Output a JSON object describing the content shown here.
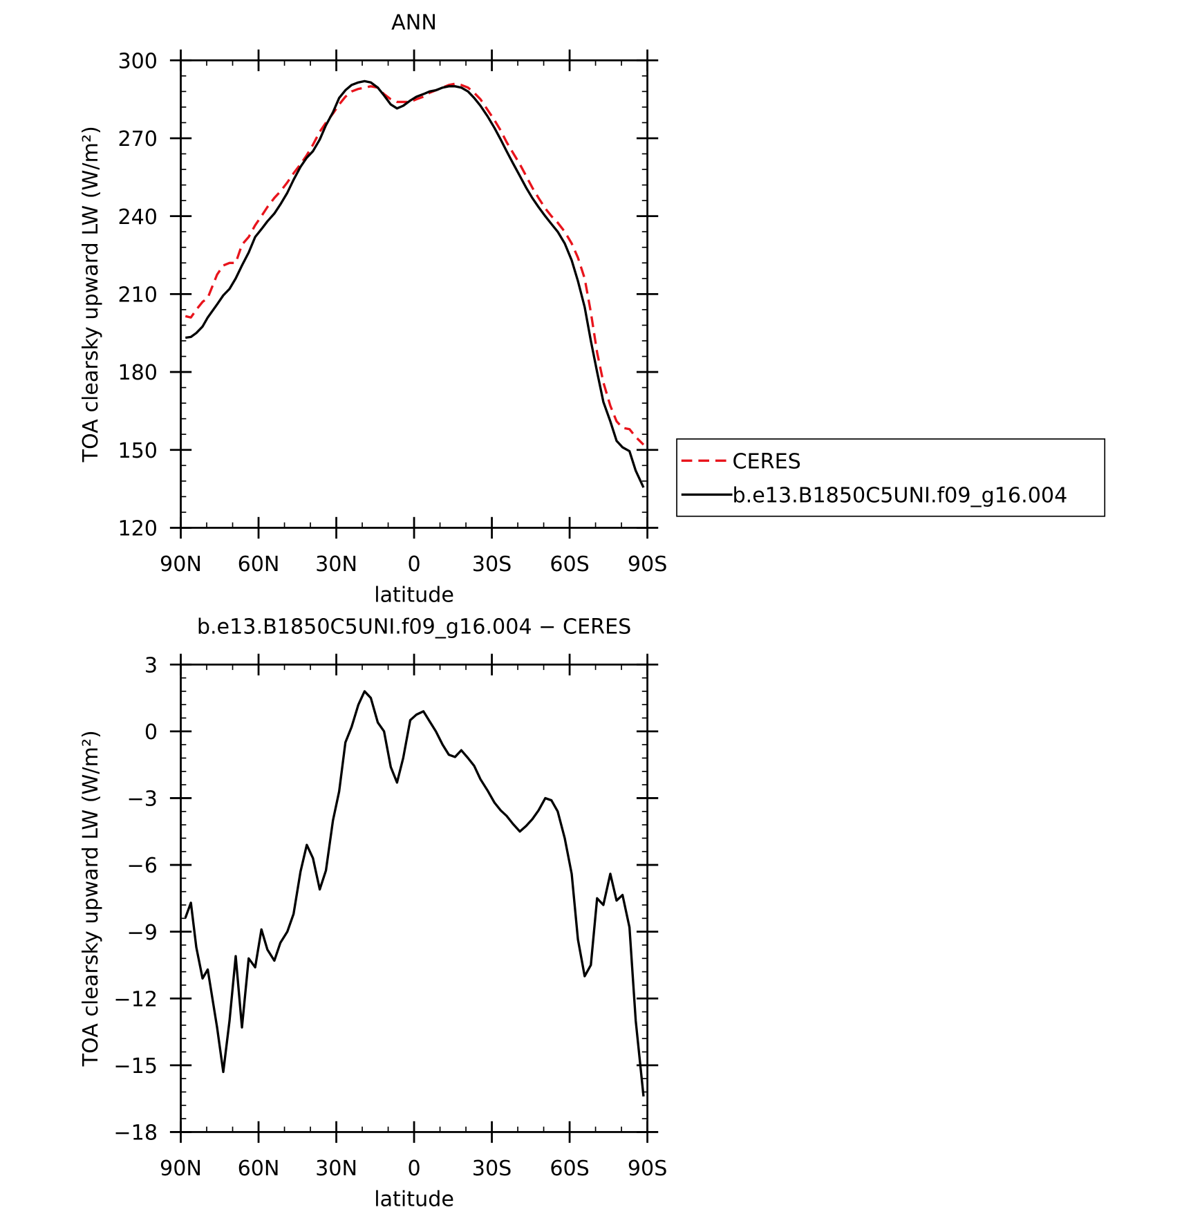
{
  "chart_data": [
    {
      "type": "line",
      "title": "ANN",
      "x_label": "latitude",
      "y_label": "TOA clearsky upward LW (W/m²)",
      "x": [
        88.2,
        86.1,
        84.0,
        81.6,
        79.6,
        76.0,
        73.6,
        71.2,
        68.8,
        66.4,
        63.8,
        61.3,
        58.9,
        56.6,
        53.9,
        51.6,
        48.9,
        46.5,
        43.8,
        41.4,
        39.0,
        36.4,
        34.0,
        31.3,
        28.9,
        26.5,
        24.1,
        21.5,
        19.1,
        16.7,
        14.0,
        11.6,
        9.0,
        6.6,
        4.2,
        1.5,
        -0.9,
        -3.6,
        -6.0,
        -8.4,
        -11.0,
        -13.4,
        -15.8,
        -18.2,
        -20.8,
        -23.2,
        -25.6,
        -28.3,
        -31.0,
        -33.4,
        -35.7,
        -38.1,
        -40.8,
        -43.2,
        -45.6,
        -48.0,
        -50.6,
        -53.0,
        -55.4,
        -58.1,
        -60.8,
        -63.2,
        -65.8,
        -68.2,
        -70.6,
        -73.0,
        -75.7,
        -78.1,
        -80.4,
        -83.1,
        -85.5,
        -88.5
      ],
      "series": [
        {
          "name": "CERES",
          "color": "#e8141c",
          "dash": true,
          "values": [
            201.5,
            201,
            204,
            207,
            208.5,
            217.5,
            221,
            222,
            222,
            229,
            232,
            236.5,
            240,
            243.5,
            247,
            249.5,
            253,
            256.5,
            260,
            263.5,
            267.5,
            272.5,
            276,
            279.5,
            283,
            286,
            288,
            289,
            289.5,
            290,
            289.5,
            287,
            285,
            284,
            284,
            284,
            285,
            286,
            287.5,
            288.5,
            289.5,
            290.5,
            291,
            290.5,
            289.5,
            287.5,
            285,
            281,
            277,
            273,
            268.5,
            264.5,
            260,
            255.5,
            251,
            247,
            243,
            240,
            237.5,
            234,
            229.5,
            224,
            216,
            203,
            187.5,
            176,
            167,
            161,
            158.5,
            158,
            155,
            152
          ]
        },
        {
          "name": "b.e13.B1850C5UNI.f09_g16.004",
          "color": "#000000",
          "dash": false,
          "values": [
            193.2,
            193.5,
            195,
            197.5,
            201,
            206,
            209.5,
            212,
            216,
            221,
            226,
            232,
            235,
            238,
            241,
            244.5,
            249,
            254,
            259,
            262.5,
            265,
            269.5,
            275,
            280,
            285.5,
            288.5,
            290.5,
            291.5,
            292,
            291.5,
            289.5,
            286.5,
            283,
            281.5,
            282.5,
            284.5,
            286,
            287,
            288,
            288.5,
            289.5,
            290,
            290,
            289.5,
            288,
            285.5,
            282.5,
            278.5,
            274,
            269.5,
            265,
            260.5,
            255.5,
            251,
            247,
            243.5,
            240,
            237,
            234,
            229.5,
            223,
            215,
            205,
            192,
            180,
            168.5,
            161,
            153.5,
            151,
            149.5,
            142,
            135.5
          ]
        }
      ],
      "xlim": [
        90,
        -90
      ],
      "xticks": [
        {
          "value": 90,
          "label": "90N"
        },
        {
          "value": 60,
          "label": "60N"
        },
        {
          "value": 30,
          "label": "30N"
        },
        0,
        {
          "value": -30,
          "label": "30S"
        },
        {
          "value": -60,
          "label": "60S"
        },
        {
          "value": -90,
          "label": "90S"
        }
      ],
      "ylim": [
        120,
        300
      ],
      "yticks": [
        120,
        150,
        180,
        210,
        240,
        270,
        300
      ],
      "legend": "right"
    },
    {
      "type": "line",
      "title": "b.e13.B1850C5UNI.f09_g16.004 − CERES",
      "x_label": "latitude",
      "y_label": "TOA clearsky upward LW (W/m²)",
      "x": [
        88.2,
        86.1,
        84.0,
        81.6,
        79.6,
        76.0,
        73.6,
        71.2,
        68.8,
        66.4,
        63.8,
        61.3,
        58.9,
        56.6,
        53.9,
        51.6,
        48.9,
        46.5,
        43.8,
        41.4,
        39.0,
        36.4,
        34.0,
        31.3,
        28.9,
        26.5,
        24.1,
        21.5,
        19.1,
        16.7,
        14.0,
        11.6,
        9.0,
        6.6,
        4.2,
        1.5,
        -0.9,
        -3.6,
        -6.0,
        -8.4,
        -11.0,
        -13.4,
        -15.8,
        -18.2,
        -20.8,
        -23.2,
        -25.6,
        -28.3,
        -31.0,
        -33.4,
        -35.7,
        -38.1,
        -40.8,
        -43.2,
        -45.6,
        -48.0,
        -50.6,
        -53.0,
        -55.4,
        -58.1,
        -60.8,
        -63.2,
        -65.8,
        -68.2,
        -70.6,
        -73.0,
        -75.7,
        -78.1,
        -80.4,
        -83.1,
        -85.5,
        -88.5
      ],
      "series": [
        {
          "color": "#000000",
          "dash": false,
          "values": [
            -8.37,
            -7.7,
            -9.7,
            -11.1,
            -10.7,
            -13.3,
            -15.3,
            -13.0,
            -10.1,
            -13.3,
            -10.2,
            -10.6,
            -8.9,
            -9.8,
            -10.3,
            -9.5,
            -9.0,
            -8.2,
            -6.3,
            -5.1,
            -5.7,
            -7.1,
            -6.25,
            -4.0,
            -2.7,
            -0.5,
            0.2,
            1.2,
            1.8,
            1.5,
            0.4,
            0.0,
            -1.6,
            -2.3,
            -1.2,
            0.5,
            0.75,
            0.9,
            0.45,
            0.0,
            -0.6,
            -1.05,
            -1.15,
            -0.85,
            -1.2,
            -1.55,
            -2.15,
            -2.65,
            -3.2,
            -3.55,
            -3.8,
            -4.15,
            -4.5,
            -4.25,
            -3.95,
            -3.55,
            -3.0,
            -3.1,
            -3.6,
            -4.8,
            -6.4,
            -9.35,
            -11.0,
            -10.5,
            -7.5,
            -7.8,
            -6.4,
            -7.6,
            -7.35,
            -8.8,
            -13.0,
            -16.4
          ]
        }
      ],
      "xlim": [
        90,
        -90
      ],
      "xticks": [
        {
          "value": 90,
          "label": "90N"
        },
        {
          "value": 60,
          "label": "60N"
        },
        {
          "value": 30,
          "label": "30N"
        },
        0,
        {
          "value": -30,
          "label": "30S"
        },
        {
          "value": -60,
          "label": "60S"
        },
        {
          "value": -90,
          "label": "90S"
        }
      ],
      "ylim": [
        -18,
        3
      ],
      "yticks": [
        {
          "value": -18,
          "label": "−18"
        },
        {
          "value": -15,
          "label": "−15"
        },
        {
          "value": -12,
          "label": "−12"
        },
        {
          "value": -9,
          "label": "−9"
        },
        {
          "value": -6,
          "label": "−6"
        },
        {
          "value": -3,
          "label": "−3"
        },
        0,
        3
      ]
    }
  ]
}
